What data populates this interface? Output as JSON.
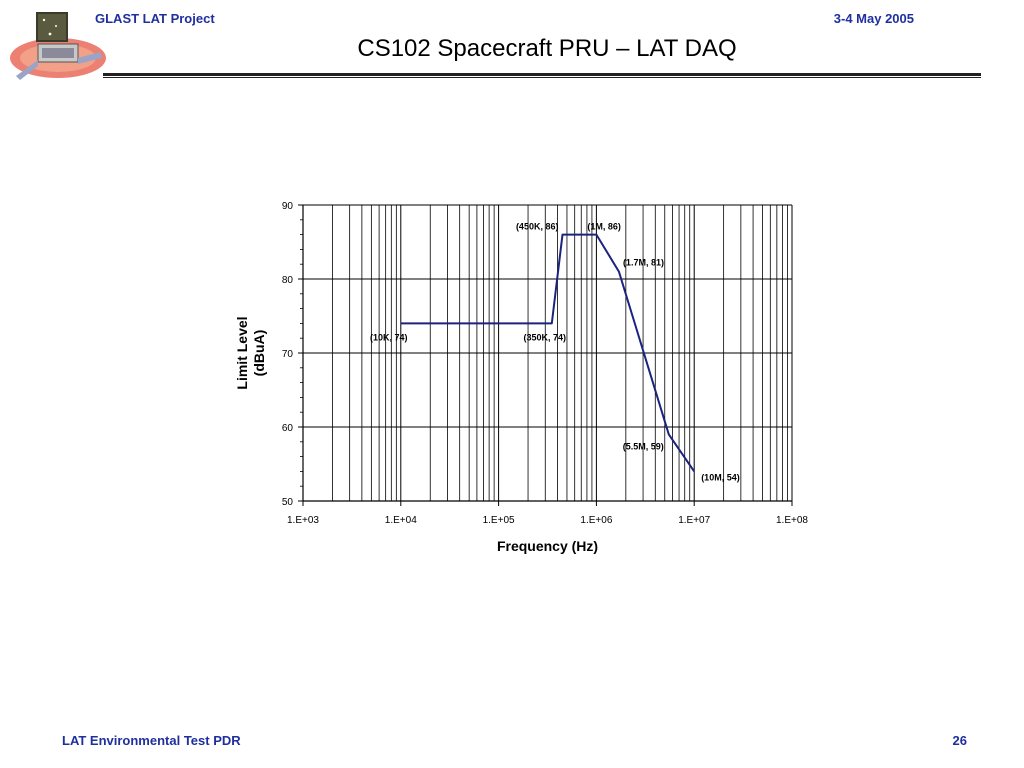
{
  "header": {
    "project": "GLAST LAT Project",
    "date": "3-4 May 2005",
    "title": "CS102 Spacecraft PRU – LAT DAQ"
  },
  "footer": {
    "left": "LAT Environmental Test PDR",
    "page": "26"
  },
  "logo": {
    "icon": "glast-satellite-logo-icon"
  },
  "chart_data": {
    "type": "line",
    "title": "",
    "xlabel": "Frequency (Hz)",
    "ylabel_lines": [
      "Limit Level",
      "(dBuA)"
    ],
    "x_scale": "log",
    "xlim": [
      1000,
      100000000
    ],
    "ylim": [
      50,
      90
    ],
    "x_ticks": [
      1000,
      10000,
      100000,
      1000000,
      10000000,
      100000000
    ],
    "x_tick_labels": [
      "1.E+03",
      "1.E+04",
      "1.E+05",
      "1.E+06",
      "1.E+07",
      "1.E+08"
    ],
    "y_ticks": [
      50,
      60,
      70,
      80,
      90
    ],
    "y_tick_labels": [
      "50",
      "60",
      "70",
      "80",
      "90"
    ],
    "grid": true,
    "line_color": "#1a237e",
    "series": [
      {
        "x": [
          10000,
          350000,
          450000,
          1000000,
          1700000,
          5500000,
          10000000
        ],
        "y": [
          74,
          74,
          86,
          86,
          81,
          59,
          54
        ]
      }
    ],
    "annotations": [
      {
        "text": "(10K, 74)",
        "x": 10000,
        "y": 74
      },
      {
        "text": "(350K, 74)",
        "x": 350000,
        "y": 74
      },
      {
        "text": "(450K, 86)",
        "x": 450000,
        "y": 86
      },
      {
        "text": "(1M, 86)",
        "x": 1000000,
        "y": 86
      },
      {
        "text": "(1.7M, 81)",
        "x": 1700000,
        "y": 81
      },
      {
        "text": "(5.5M, 59)",
        "x": 5500000,
        "y": 59
      },
      {
        "text": "(10M, 54)",
        "x": 10000000,
        "y": 54
      }
    ]
  }
}
